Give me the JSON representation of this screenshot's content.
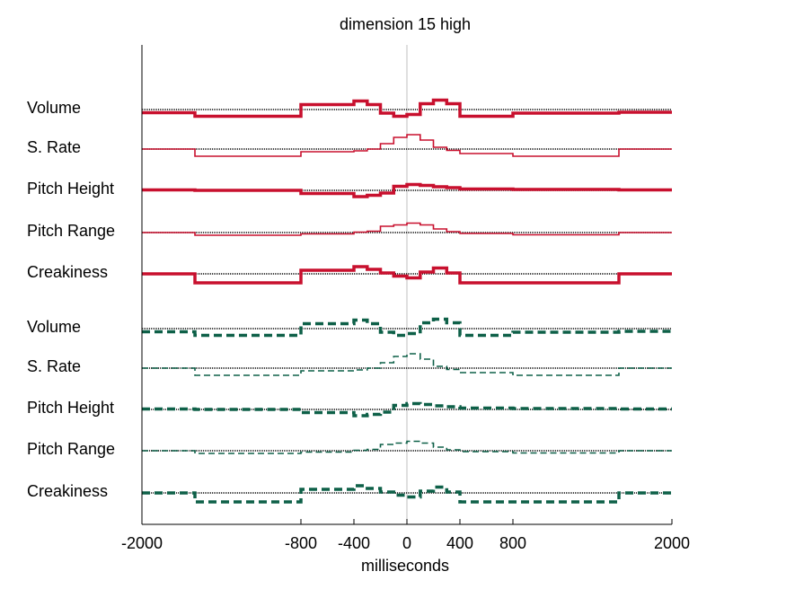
{
  "chart_data": {
    "type": "line",
    "title": "dimension 15 high",
    "xlabel": "milliseconds",
    "ylabel": "",
    "xlim": [
      -2000,
      2000
    ],
    "x_ticks": [
      -2000,
      -800,
      -400,
      0,
      400,
      800,
      2000
    ],
    "x_tick_labels": [
      "-2000",
      "-800",
      "-400",
      "0",
      "400",
      "800",
      "2000"
    ],
    "vertical_reference_line_at": 0,
    "step_edges_ms": [
      -2000,
      -1600,
      -800,
      -400,
      -300,
      -200,
      -100,
      0,
      100,
      200,
      300,
      400,
      800,
      1600,
      2000
    ],
    "colors": {
      "group_1": "#c8102e",
      "group_2": "#0e6048",
      "baseline": "#000000",
      "zero_line": "#bfbfbf",
      "axis": "#000000"
    },
    "groups": [
      {
        "line_style": "solid",
        "rows": [
          {
            "label": "Volume",
            "weight": "bold",
            "values": [
              -0.35,
              -0.75,
              0.55,
              0.95,
              0.55,
              -0.4,
              -0.75,
              -0.55,
              0.65,
              1.05,
              0.65,
              -0.75,
              -0.4,
              -0.3
            ]
          },
          {
            "label": "S. Rate",
            "weight": "thin",
            "values": [
              0,
              -0.8,
              -0.3,
              -0.2,
              0,
              0.6,
              1.3,
              1.6,
              1.0,
              0.2,
              -0.15,
              -0.5,
              -0.8,
              0
            ]
          },
          {
            "label": "Pitch Height",
            "weight": "bold",
            "values": [
              0.05,
              0,
              -0.35,
              -0.7,
              -0.55,
              -0.3,
              0.45,
              0.65,
              0.55,
              0.4,
              0.3,
              0.15,
              0.1,
              0.05
            ]
          },
          {
            "label": "Pitch Range",
            "weight": "thin",
            "values": [
              0,
              -0.3,
              -0.15,
              0.05,
              0.15,
              0.7,
              0.85,
              1.05,
              0.85,
              0.4,
              0.1,
              -0.1,
              -0.25,
              0
            ]
          },
          {
            "label": "Creakiness",
            "weight": "bold",
            "values": [
              0,
              -1.0,
              0.4,
              0.8,
              0.5,
              0.1,
              -0.25,
              -0.45,
              0.2,
              0.65,
              0.1,
              -1.0,
              -1.0,
              0
            ]
          }
        ]
      },
      {
        "line_style": "dashed",
        "rows": [
          {
            "label": "Volume",
            "weight": "bold",
            "values": [
              -0.35,
              -0.75,
              0.55,
              0.95,
              0.55,
              -0.4,
              -0.75,
              -0.55,
              0.65,
              1.05,
              0.65,
              -0.75,
              -0.4,
              -0.3
            ]
          },
          {
            "label": "S. Rate",
            "weight": "thin",
            "values": [
              0,
              -0.8,
              -0.3,
              -0.2,
              0,
              0.6,
              1.3,
              1.6,
              1.0,
              0.2,
              -0.15,
              -0.5,
              -0.8,
              0
            ]
          },
          {
            "label": "Pitch Height",
            "weight": "bold",
            "values": [
              0.05,
              0,
              -0.35,
              -0.7,
              -0.55,
              -0.3,
              0.45,
              0.65,
              0.55,
              0.4,
              0.3,
              0.15,
              0.1,
              0.05
            ]
          },
          {
            "label": "Pitch Range",
            "weight": "thin",
            "values": [
              0,
              -0.3,
              -0.15,
              0.05,
              0.15,
              0.7,
              0.85,
              1.05,
              0.85,
              0.4,
              0.1,
              -0.1,
              -0.25,
              0
            ]
          },
          {
            "label": "Creakiness",
            "weight": "bold",
            "values": [
              0,
              -1.0,
              0.4,
              0.8,
              0.5,
              0.1,
              -0.25,
              -0.45,
              0.2,
              0.65,
              0.1,
              -1.0,
              -1.0,
              0
            ]
          }
        ]
      }
    ]
  }
}
